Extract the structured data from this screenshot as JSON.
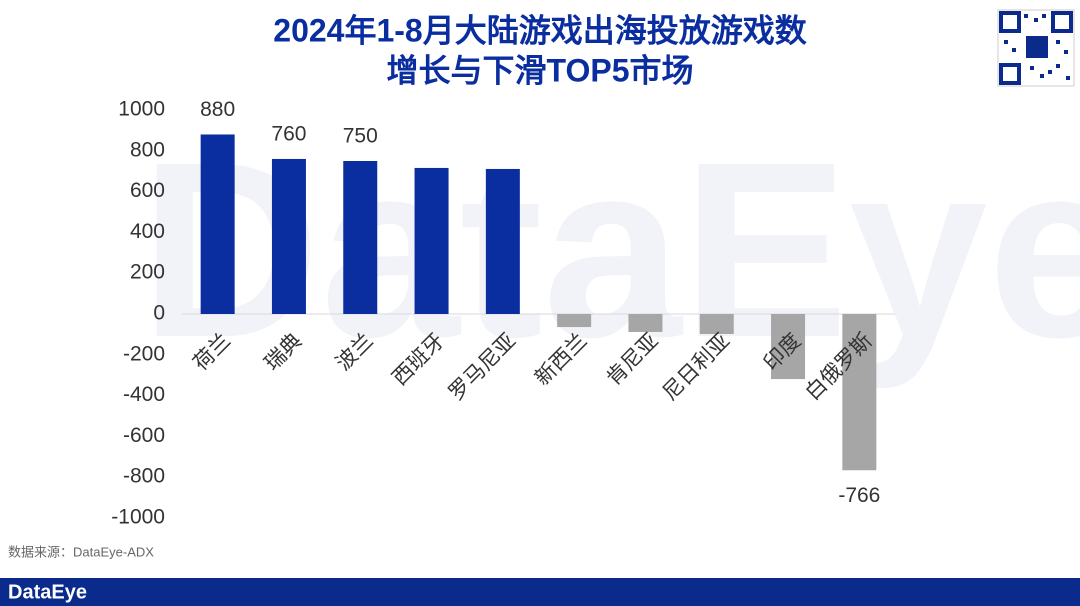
{
  "chart_data": {
    "type": "bar",
    "title": [
      "2024年1-8月大陆游戏出海投放游戏数",
      "增长与下滑TOP5市场"
    ],
    "categories": [
      "荷兰",
      "瑞典",
      "波兰",
      "西班牙",
      "罗马尼亚",
      "新西兰",
      "肯尼亚",
      "尼日利亚",
      "印度",
      "白俄罗斯"
    ],
    "values": [
      880,
      760,
      750,
      716,
      711,
      -64,
      -88,
      -98,
      -319,
      -766
    ],
    "value_labels": [
      "880",
      "760",
      "750",
      null,
      null,
      null,
      null,
      null,
      null,
      "-766"
    ],
    "colors": [
      "#0a2ea0",
      "#0a2ea0",
      "#0a2ea0",
      "#0a2ea0",
      "#0a2ea0",
      "#a6a6a6",
      "#a6a6a6",
      "#a6a6a6",
      "#a6a6a6",
      "#a6a6a6"
    ],
    "ylim": [
      -1000,
      1000
    ],
    "yticks": [
      -1000,
      -800,
      -600,
      -400,
      -200,
      0,
      200,
      400,
      600,
      800,
      1000
    ],
    "grid": false
  },
  "source": "数据来源：DataEye-ADX",
  "footer": {
    "logo": "DataEye"
  },
  "watermark": "DataEye"
}
